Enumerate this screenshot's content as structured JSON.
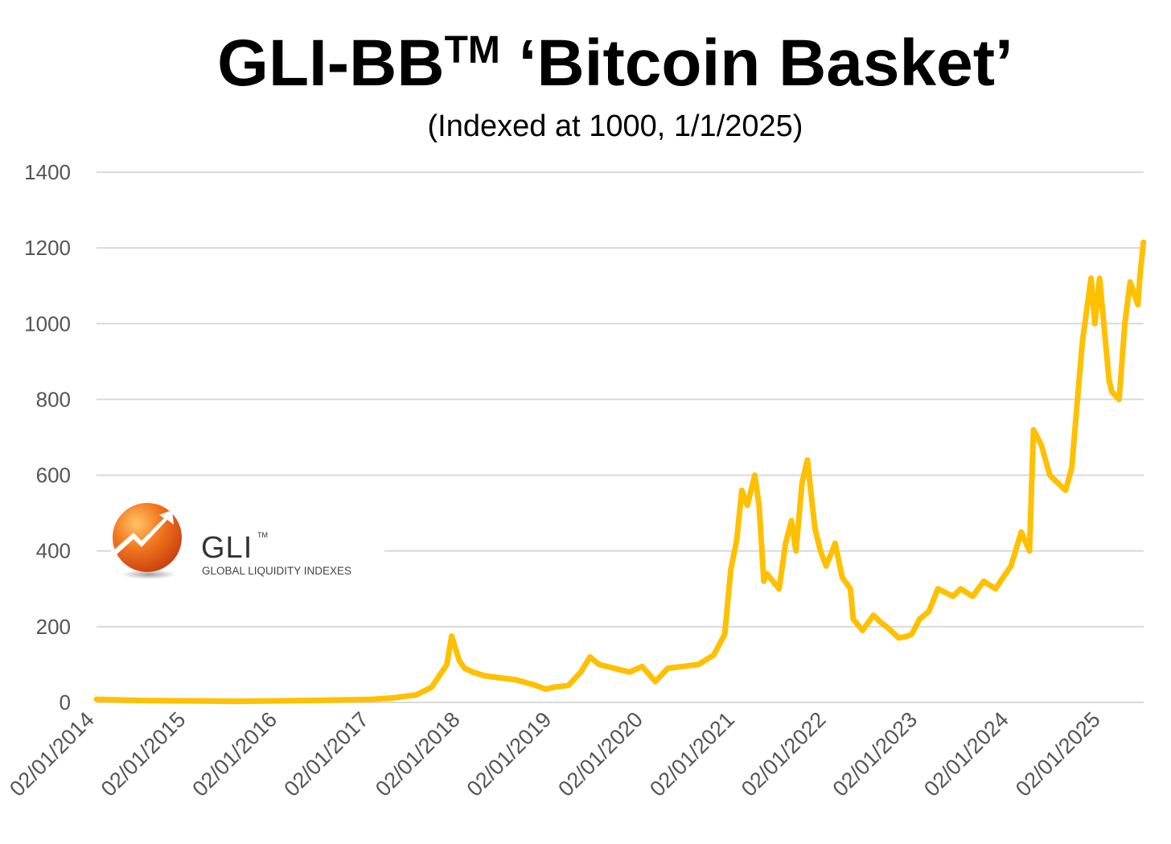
{
  "chart_data": {
    "type": "line",
    "title_main": "GLI-BB",
    "title_sup": "TM",
    "title_rest": " ‘Bitcoin Basket’",
    "subtitle": "(Indexed at 1000, 1/1/2025)",
    "xlabel": "",
    "ylabel": "",
    "ylim": [
      0,
      1400
    ],
    "yticks": [
      "0",
      "200",
      "400",
      "600",
      "800",
      "1000",
      "1200",
      "1400"
    ],
    "xticks": [
      "02/01/2014",
      "02/01/2015",
      "02/01/2016",
      "02/01/2017",
      "02/01/2018",
      "02/01/2019",
      "02/01/2020",
      "02/01/2021",
      "02/01/2022",
      "02/01/2023",
      "02/01/2024",
      "02/01/2025"
    ],
    "x_range": [
      "2014-02-01",
      "2025-07-15"
    ],
    "grid": true,
    "legend": "none",
    "line_color": "#FFC000",
    "series": [
      {
        "x": [
          "2014-02-01",
          "2014-08-01",
          "2015-02-01",
          "2015-08-01",
          "2016-02-01",
          "2016-08-01",
          "2017-02-01",
          "2017-05-01",
          "2017-08-01",
          "2017-10-01",
          "2017-12-01",
          "2017-12-20",
          "2018-01-20",
          "2018-02-10",
          "2018-03-15",
          "2018-05-01",
          "2018-07-01",
          "2018-09-01",
          "2018-11-20",
          "2019-01-01",
          "2019-02-01",
          "2019-04-01",
          "2019-05-20",
          "2019-06-26",
          "2019-08-01",
          "2019-10-01",
          "2019-12-01",
          "2020-01-20",
          "2020-03-13",
          "2020-05-01",
          "2020-07-01",
          "2020-09-01",
          "2020-11-01",
          "2020-12-15",
          "2021-01-08",
          "2021-02-01",
          "2021-02-21",
          "2021-03-15",
          "2021-04-14",
          "2021-05-01",
          "2021-05-20",
          "2021-06-01",
          "2021-07-20",
          "2021-08-15",
          "2021-09-07",
          "2021-09-25",
          "2021-10-20",
          "2021-11-10",
          "2021-12-10",
          "2022-01-01",
          "2022-01-24",
          "2022-03-01",
          "2022-03-29",
          "2022-05-01",
          "2022-05-12",
          "2022-06-18",
          "2022-08-01",
          "2022-09-01",
          "2022-10-01",
          "2022-11-10",
          "2022-12-15",
          "2023-01-01",
          "2023-02-01",
          "2023-03-10",
          "2023-04-15",
          "2023-06-15",
          "2023-07-15",
          "2023-09-01",
          "2023-10-15",
          "2023-12-01",
          "2024-01-01",
          "2024-02-01",
          "2024-03-13",
          "2024-04-15",
          "2024-05-01",
          "2024-06-01",
          "2024-07-05",
          "2024-08-05",
          "2024-09-06",
          "2024-10-01",
          "2024-11-12",
          "2024-12-17",
          "2025-01-01",
          "2025-01-20",
          "2025-02-27",
          "2025-03-10",
          "2025-04-08",
          "2025-05-01",
          "2025-05-22",
          "2025-06-22",
          "2025-07-01",
          "2025-07-14"
        ],
        "values": [
          8,
          5,
          4,
          3,
          4,
          6,
          8,
          12,
          20,
          40,
          100,
          175,
          110,
          90,
          80,
          70,
          65,
          60,
          45,
          35,
          40,
          45,
          80,
          120,
          100,
          90,
          80,
          95,
          55,
          90,
          95,
          100,
          125,
          180,
          350,
          430,
          560,
          520,
          600,
          520,
          320,
          340,
          300,
          420,
          480,
          400,
          580,
          640,
          460,
          400,
          360,
          420,
          330,
          300,
          220,
          190,
          230,
          210,
          195,
          170,
          175,
          180,
          220,
          240,
          300,
          280,
          300,
          280,
          320,
          300,
          330,
          360,
          450,
          400,
          720,
          680,
          600,
          580,
          560,
          620,
          950,
          1120,
          1000,
          1120,
          850,
          820,
          800,
          1000,
          1110,
          1050,
          1130,
          1215
        ]
      }
    ]
  },
  "logo": {
    "name": "GLI",
    "tm": "TM",
    "tagline": "GLOBAL LIQUIDITY INDEXES"
  }
}
